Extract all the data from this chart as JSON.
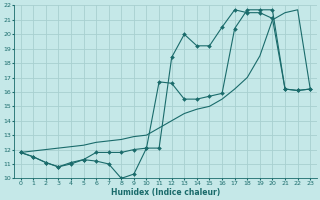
{
  "title": "",
  "xlabel": "Humidex (Indice chaleur)",
  "xlim": [
    -0.5,
    23.5
  ],
  "ylim": [
    10,
    22
  ],
  "yticks": [
    10,
    11,
    12,
    13,
    14,
    15,
    16,
    17,
    18,
    19,
    20,
    21,
    22
  ],
  "xticks": [
    0,
    1,
    2,
    3,
    4,
    5,
    6,
    7,
    8,
    9,
    10,
    11,
    12,
    13,
    14,
    15,
    16,
    17,
    18,
    19,
    20,
    21,
    22,
    23
  ],
  "background_color": "#c5e8e8",
  "grid_color": "#a8d0d0",
  "line_color": "#1a6b6b",
  "line1_x": [
    0,
    1,
    2,
    3,
    4,
    5,
    6,
    7,
    8,
    9,
    10,
    11,
    12,
    13,
    14,
    15,
    16,
    17,
    18,
    19,
    20,
    21,
    22,
    23
  ],
  "line1_y": [
    11.8,
    11.5,
    11.1,
    10.8,
    11.1,
    11.3,
    11.8,
    11.8,
    11.8,
    12.0,
    12.1,
    16.7,
    16.6,
    15.5,
    15.5,
    15.7,
    15.9,
    20.4,
    21.7,
    21.7,
    21.7,
    16.2,
    16.1,
    16.2
  ],
  "line2_x": [
    0,
    1,
    2,
    3,
    4,
    5,
    6,
    7,
    8,
    9,
    10,
    11,
    12,
    13,
    14,
    15,
    16,
    17,
    18,
    19,
    20,
    21,
    22,
    23
  ],
  "line2_y": [
    11.8,
    11.5,
    11.1,
    10.8,
    11.0,
    11.3,
    11.2,
    11.0,
    10.0,
    10.3,
    12.1,
    12.1,
    18.4,
    20.0,
    19.2,
    19.2,
    20.5,
    21.7,
    21.5,
    21.5,
    21.1,
    16.2,
    16.1,
    16.2
  ],
  "line3_x": [
    0,
    1,
    2,
    3,
    4,
    5,
    6,
    7,
    8,
    9,
    10,
    11,
    12,
    13,
    14,
    15,
    16,
    17,
    18,
    19,
    20,
    21,
    22,
    23
  ],
  "line3_y": [
    11.8,
    11.9,
    12.0,
    12.1,
    12.2,
    12.3,
    12.5,
    12.6,
    12.7,
    12.9,
    13.0,
    13.5,
    14.0,
    14.5,
    14.8,
    15.0,
    15.5,
    16.2,
    17.0,
    18.5,
    21.0,
    21.5,
    21.7,
    16.2
  ]
}
